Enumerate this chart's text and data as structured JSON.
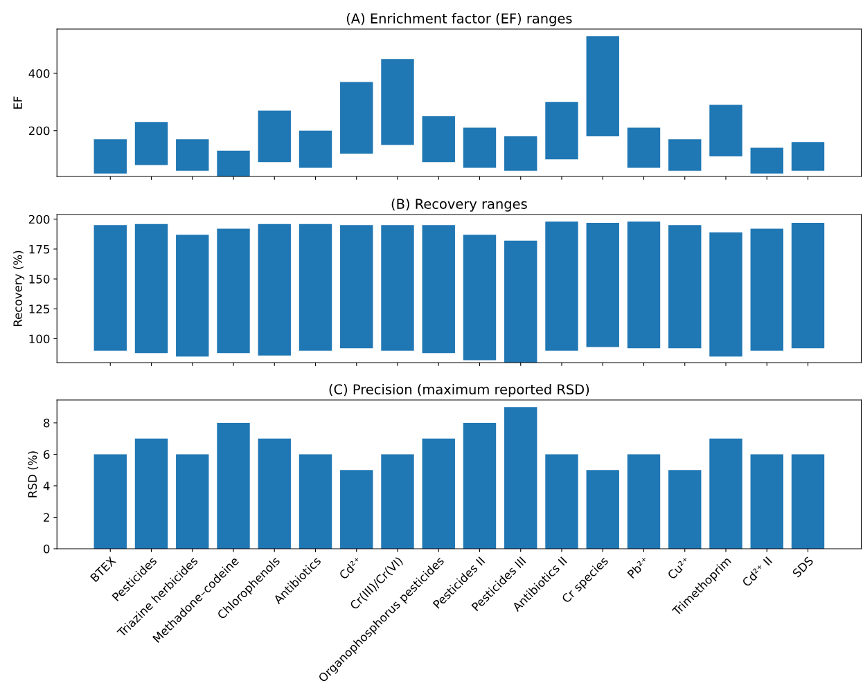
{
  "chart_data": [
    {
      "type": "bar",
      "title": "(A) Enrichment factor (EF) ranges",
      "ylabel": "EF",
      "categories": [
        null,
        null,
        null,
        null,
        null,
        null,
        null,
        null,
        null,
        null,
        null,
        null,
        null,
        null,
        null,
        null,
        null,
        null
      ],
      "base": [
        50,
        80,
        60,
        40,
        90,
        70,
        120,
        150,
        90,
        70,
        60,
        100,
        180,
        70,
        60,
        110,
        50,
        60
      ],
      "values": [
        120,
        150,
        110,
        90,
        180,
        130,
        250,
        300,
        160,
        140,
        120,
        200,
        350,
        140,
        110,
        180,
        90,
        100
      ],
      "color": "#1f77b4",
      "ylim": [
        40,
        554.5
      ],
      "yticks": [
        200,
        400
      ],
      "tick_labels": "y",
      "grid": false
    },
    {
      "type": "bar",
      "title": "(B) Recovery ranges",
      "ylabel": "Recovery (%)",
      "categories": [
        null,
        null,
        null,
        null,
        null,
        null,
        null,
        null,
        null,
        null,
        null,
        null,
        null,
        null,
        null,
        null,
        null,
        null
      ],
      "base": [
        90,
        88,
        85,
        88,
        86,
        90,
        92,
        90,
        88,
        82,
        80,
        90,
        93,
        92,
        92,
        85,
        90,
        92
      ],
      "values": [
        105,
        108,
        102,
        104,
        110,
        106,
        103,
        105,
        107,
        105,
        102,
        108,
        104,
        106,
        103,
        104,
        102,
        105
      ],
      "color": "#1f77b4",
      "ylim": [
        80,
        203.9
      ],
      "yticks": [
        100,
        125,
        150,
        175,
        200
      ],
      "tick_labels": "y",
      "grid": false
    },
    {
      "type": "bar",
      "title": "(C) Precision (maximum reported RSD)",
      "ylabel": "RSD (%)",
      "categories": [
        "BTEX",
        "Pesticides",
        "Triazine herbicides",
        "Methadone–codeine",
        "Chlorophenols",
        "Antibiotics",
        "Cd²⁺",
        "Cr(III)/Cr(VI)",
        "Organophosphorus pesticides",
        "Pesticides II",
        "Pesticides III",
        "Antibiotics II",
        "Cr species",
        "Pb²⁺",
        "Cu²⁺",
        "Trimethoprim",
        "Cd²⁺ II",
        "SDS"
      ],
      "values": [
        6,
        7,
        6,
        8,
        7,
        6,
        5,
        6,
        7,
        8,
        9,
        6,
        5,
        6,
        5,
        7,
        6,
        6
      ],
      "color": "#1f77b4",
      "ylim": [
        0,
        9.45
      ],
      "yticks": [
        0,
        2,
        4,
        6,
        8
      ],
      "grid": false
    }
  ]
}
